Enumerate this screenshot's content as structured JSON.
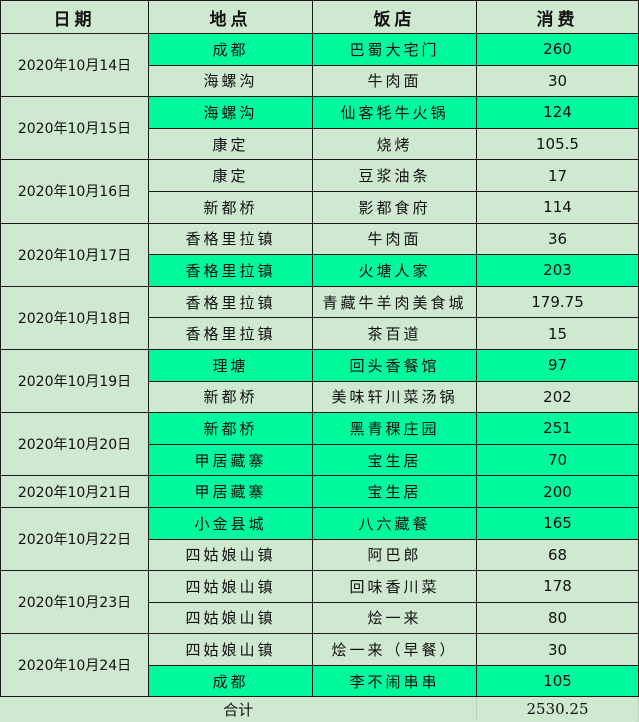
{
  "headers": [
    "日期",
    "地点",
    "饭店",
    "消费"
  ],
  "colors": {
    "background": "#cfe8d0",
    "highlight": "#00f99c"
  },
  "groups": [
    {
      "date": "2020年10月14日",
      "rows": [
        {
          "location": "成都",
          "restaurant": "巴蜀大宅门",
          "cost": "260",
          "highlight": true
        },
        {
          "location": "海螺沟",
          "restaurant": "牛肉面",
          "cost": "30",
          "highlight": false
        }
      ]
    },
    {
      "date": "2020年10月15日",
      "rows": [
        {
          "location": "海螺沟",
          "restaurant": "仙客牦牛火锅",
          "cost": "124",
          "highlight": true
        },
        {
          "location": "康定",
          "restaurant": "烧烤",
          "cost": "105.5",
          "highlight": false
        }
      ]
    },
    {
      "date": "2020年10月16日",
      "rows": [
        {
          "location": "康定",
          "restaurant": "豆浆油条",
          "cost": "17",
          "highlight": false
        },
        {
          "location": "新都桥",
          "restaurant": "影都食府",
          "cost": "114",
          "highlight": false
        }
      ]
    },
    {
      "date": "2020年10月17日",
      "rows": [
        {
          "location": "香格里拉镇",
          "restaurant": "牛肉面",
          "cost": "36",
          "highlight": false
        },
        {
          "location": "香格里拉镇",
          "restaurant": "火塘人家",
          "cost": "203",
          "highlight": true
        }
      ]
    },
    {
      "date": "2020年10月18日",
      "rows": [
        {
          "location": "香格里拉镇",
          "restaurant": "青藏牛羊肉美食城",
          "cost": "179.75",
          "highlight": false
        },
        {
          "location": "香格里拉镇",
          "restaurant": "茶百道",
          "cost": "15",
          "highlight": false
        }
      ]
    },
    {
      "date": "2020年10月19日",
      "rows": [
        {
          "location": "理塘",
          "restaurant": "回头香餐馆",
          "cost": "97",
          "highlight": true
        },
        {
          "location": "新都桥",
          "restaurant": "美味轩川菜汤锅",
          "cost": "202",
          "highlight": false
        }
      ]
    },
    {
      "date": "2020年10月20日",
      "rows": [
        {
          "location": "新都桥",
          "restaurant": "黑青稞庄园",
          "cost": "251",
          "highlight": true
        },
        {
          "location": "甲居藏寨",
          "restaurant": "宝生居",
          "cost": "70",
          "highlight": true
        }
      ]
    },
    {
      "date": "2020年10月21日",
      "rows": [
        {
          "location": "甲居藏寨",
          "restaurant": "宝生居",
          "cost": "200",
          "highlight": true
        }
      ]
    },
    {
      "date": "2020年10月22日",
      "rows": [
        {
          "location": "小金县城",
          "restaurant": "八六藏餐",
          "cost": "165",
          "highlight": true
        },
        {
          "location": "四姑娘山镇",
          "restaurant": "阿巴郎",
          "cost": "68",
          "highlight": false
        }
      ]
    },
    {
      "date": "2020年10月23日",
      "rows": [
        {
          "location": "四姑娘山镇",
          "restaurant": "回味香川菜",
          "cost": "178",
          "highlight": false
        },
        {
          "location": "四姑娘山镇",
          "restaurant": "烩一来",
          "cost": "80",
          "highlight": false
        }
      ]
    },
    {
      "date": "2020年10月24日",
      "rows": [
        {
          "location": "四姑娘山镇",
          "restaurant": "烩一来（早餐）",
          "cost": "30",
          "highlight": false
        },
        {
          "location": "成都",
          "restaurant": "李不闹串串",
          "cost": "105",
          "highlight": true
        }
      ]
    }
  ],
  "total": {
    "label": "合计",
    "value": "2530.25"
  }
}
